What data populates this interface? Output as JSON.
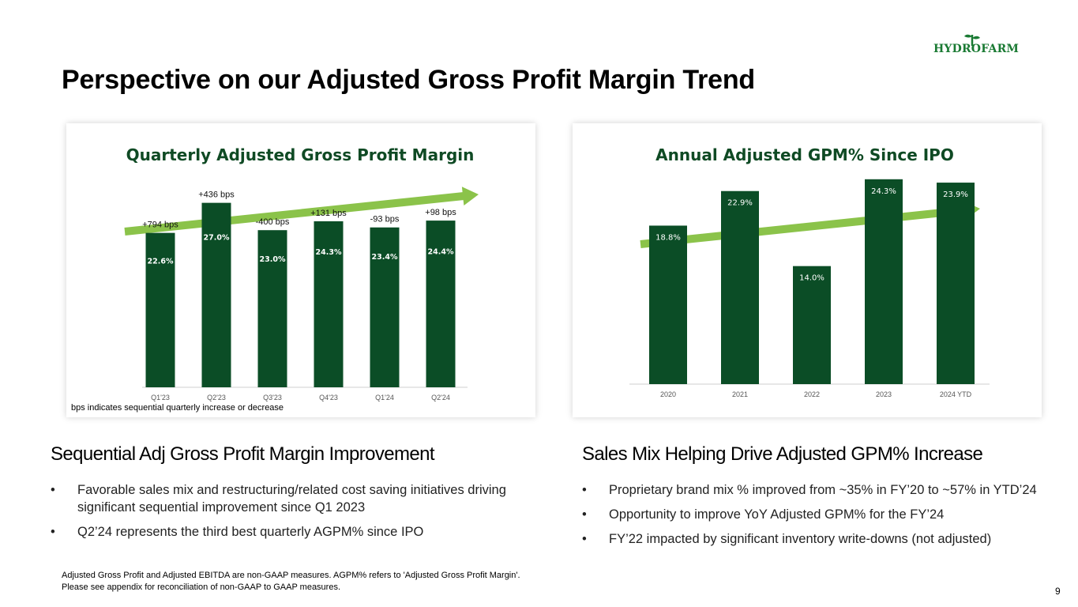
{
  "logo": {
    "text": "HYDROFARM"
  },
  "title": "Perspective on our Adjusted Gross Profit Margin Trend",
  "colors": {
    "bar": "#0b4d26",
    "arrow": "#8bc34a",
    "title_green": "#0f4a24"
  },
  "chart_data": [
    {
      "type": "bar",
      "title": "Quarterly Adjusted Gross Profit Margin",
      "categories": [
        "Q1'23",
        "Q2'23",
        "Q3'23",
        "Q4'23",
        "Q1'24",
        "Q2'24"
      ],
      "values": [
        22.6,
        27.0,
        23.0,
        24.3,
        23.4,
        24.4
      ],
      "value_labels": [
        "22.6%",
        "27.0%",
        "23.0%",
        "24.3%",
        "23.4%",
        "24.4%"
      ],
      "annotations": [
        "+794 bps",
        "+436 bps",
        "-400 bps",
        "+131 bps",
        "-93 bps",
        "+98 bps"
      ],
      "note": "bps indicates sequential quarterly increase or decrease",
      "ylim": [
        0,
        30
      ],
      "trend_arrow": true
    },
    {
      "type": "bar",
      "title": "Annual Adjusted GPM% Since IPO",
      "categories": [
        "2020",
        "2021",
        "2022",
        "2023",
        "2024 YTD"
      ],
      "values": [
        18.8,
        22.9,
        14.0,
        24.3,
        23.9
      ],
      "value_labels": [
        "18.8%",
        "22.9%",
        "14.0%",
        "24.3%",
        "23.9%"
      ],
      "ylim": [
        0,
        30
      ],
      "trend_arrow": true
    }
  ],
  "left_section": {
    "heading": "Sequential Adj Gross Profit Margin Improvement",
    "bullets": [
      "Favorable sales mix and restructuring/related cost saving initiatives driving significant sequential improvement since Q1 2023",
      "Q2’24 represents the third best quarterly AGPM% since IPO"
    ]
  },
  "right_section": {
    "heading": "Sales Mix Helping Drive Adjusted GPM% Increase",
    "bullets": [
      "Proprietary brand mix % improved from ~35% in FY’20 to ~57% in YTD’24",
      "Opportunity to improve YoY Adjusted GPM% for the FY’24",
      "FY’22 impacted by significant inventory write-downs (not adjusted)"
    ]
  },
  "footnote": {
    "line1": "Adjusted Gross Profit and Adjusted EBITDA are non-GAAP measures.  AGPM% refers to 'Adjusted Gross Profit Margin'.",
    "line2": "Please see appendix for reconciliation of non-GAAP to GAAP measures."
  },
  "page_number": "9",
  "bullet_glyph": "•"
}
